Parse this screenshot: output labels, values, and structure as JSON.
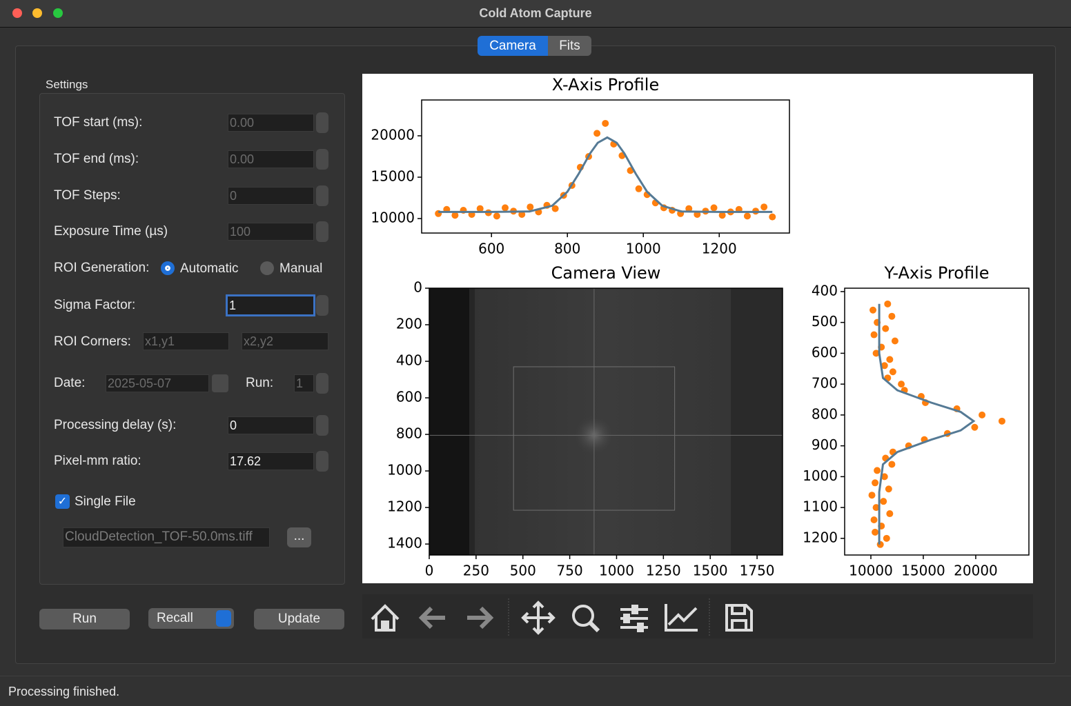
{
  "window": {
    "title": "Cold Atom Capture"
  },
  "tabs": [
    "Camera",
    "Fits"
  ],
  "settings": {
    "title": "Settings",
    "tof_start": {
      "label": "TOF start (ms):",
      "value": "0.00"
    },
    "tof_end": {
      "label": "TOF end (ms):",
      "value": "0.00"
    },
    "tof_steps": {
      "label": "TOF Steps:",
      "value": "0"
    },
    "exposure": {
      "label": "Exposure Time (µs)",
      "value": "100"
    },
    "roi_generation": {
      "label": "ROI Generation:",
      "options": [
        "Automatic",
        "Manual"
      ]
    },
    "sigma_factor": {
      "label": "Sigma Factor:",
      "value": "1"
    },
    "roi_corners": {
      "label": "ROI Corners:",
      "placeholders": [
        "x1,y1",
        "x2,y2"
      ]
    },
    "date": {
      "label": "Date:",
      "value": "2025-05-07"
    },
    "run": {
      "label": "Run:",
      "value": "1"
    },
    "processing_delay": {
      "label": "Processing delay (s):",
      "value": "0"
    },
    "pixel_mm": {
      "label": "Pixel-mm ratio:",
      "value": "17.62"
    },
    "single_file": {
      "label": "Single File"
    },
    "file": {
      "value": "CloudDetection_TOF-50.0ms.tiff",
      "button": "..."
    }
  },
  "buttons": [
    "Run",
    "Recall",
    "Update"
  ],
  "status": "Processing finished.",
  "chart_data": [
    {
      "type": "scatter",
      "title": "X-Axis Profile",
      "xlim": [
        416,
        1385
      ],
      "ylim": [
        8250,
        24330
      ],
      "xticks": [
        600,
        800,
        1000,
        1200
      ],
      "yticks": [
        10000,
        15000,
        20000
      ],
      "points": {
        "color": "#ff7f0e",
        "x": [
          460,
          482,
          504,
          526,
          548,
          570,
          592,
          614,
          636,
          658,
          680,
          702,
          724,
          746,
          768,
          790,
          812,
          834,
          856,
          878,
          900,
          922,
          944,
          966,
          988,
          1010,
          1032,
          1054,
          1076,
          1098,
          1120,
          1142,
          1164,
          1186,
          1208,
          1230,
          1252,
          1274,
          1296,
          1318,
          1340
        ],
        "y": [
          10600,
          11100,
          10400,
          11000,
          10500,
          11200,
          10700,
          10300,
          11300,
          10900,
          10500,
          11400,
          10800,
          11600,
          11200,
          12800,
          14000,
          16200,
          17500,
          20300,
          21500,
          19000,
          17600,
          15800,
          13600,
          12900,
          11900,
          11300,
          11000,
          10600,
          11200,
          10500,
          10900,
          11300,
          10400,
          10800,
          11100,
          10300,
          10900,
          11400,
          10200
        ]
      },
      "fit": {
        "color": "#557a95",
        "x": [
          460,
          600,
          700,
          760,
          800,
          830,
          860,
          880,
          905,
          930,
          950,
          980,
          1010,
          1050,
          1100,
          1200,
          1340
        ],
        "y": [
          10800,
          10800,
          10860,
          11550,
          13240,
          15420,
          17880,
          19160,
          19800,
          19160,
          17880,
          15420,
          13240,
          11550,
          10860,
          10800,
          10800
        ]
      }
    },
    {
      "type": "image",
      "title": "Camera View",
      "xlim": [
        0,
        1886
      ],
      "ylim": [
        1460,
        0
      ],
      "xticks": [
        0,
        250,
        500,
        750,
        1000,
        1250,
        1500,
        1750
      ],
      "yticks": [
        0,
        200,
        400,
        600,
        800,
        1000,
        1200,
        1400
      ],
      "roi": {
        "x": [
          450,
          1310
        ],
        "y": [
          430,
          1215
        ]
      },
      "center": {
        "x": 880,
        "y": 805
      }
    },
    {
      "type": "scatter",
      "title": "Y-Axis Profile",
      "xlim": [
        7500,
        25070
      ],
      "ylim": [
        1254,
        389
      ],
      "xticks": [
        10000,
        15000,
        20000
      ],
      "yticks": [
        400,
        500,
        600,
        700,
        800,
        900,
        1000,
        1100,
        1200
      ],
      "points": {
        "color": "#ff7f0e",
        "x": [
          11600,
          10200,
          12000,
          10600,
          11400,
          10300,
          12300,
          11000,
          10500,
          11800,
          11300,
          12100,
          11600,
          12900,
          13200,
          14800,
          15200,
          18200,
          20600,
          22500,
          19900,
          17300,
          15100,
          13600,
          12100,
          11400,
          12000,
          10600,
          11300,
          10400,
          11700,
          10100,
          11200,
          10500,
          11800,
          10300,
          11000,
          10400,
          11500,
          10900
        ],
        "y": [
          440,
          460,
          480,
          500,
          520,
          540,
          560,
          580,
          600,
          620,
          640,
          660,
          680,
          700,
          720,
          740,
          760,
          780,
          800,
          820,
          840,
          860,
          880,
          900,
          920,
          940,
          960,
          980,
          1000,
          1020,
          1040,
          1060,
          1080,
          1100,
          1120,
          1140,
          1160,
          1180,
          1200,
          1220
        ]
      },
      "fit": {
        "color": "#557a95",
        "x": [
          10800,
          10800,
          11150,
          12530,
          15760,
          18560,
          19800,
          18560,
          15760,
          12530,
          11150,
          10800,
          10800
        ],
        "y": [
          440,
          600,
          680,
          720,
          760,
          790,
          820,
          850,
          880,
          920,
          960,
          1050,
          1220
        ]
      }
    }
  ]
}
